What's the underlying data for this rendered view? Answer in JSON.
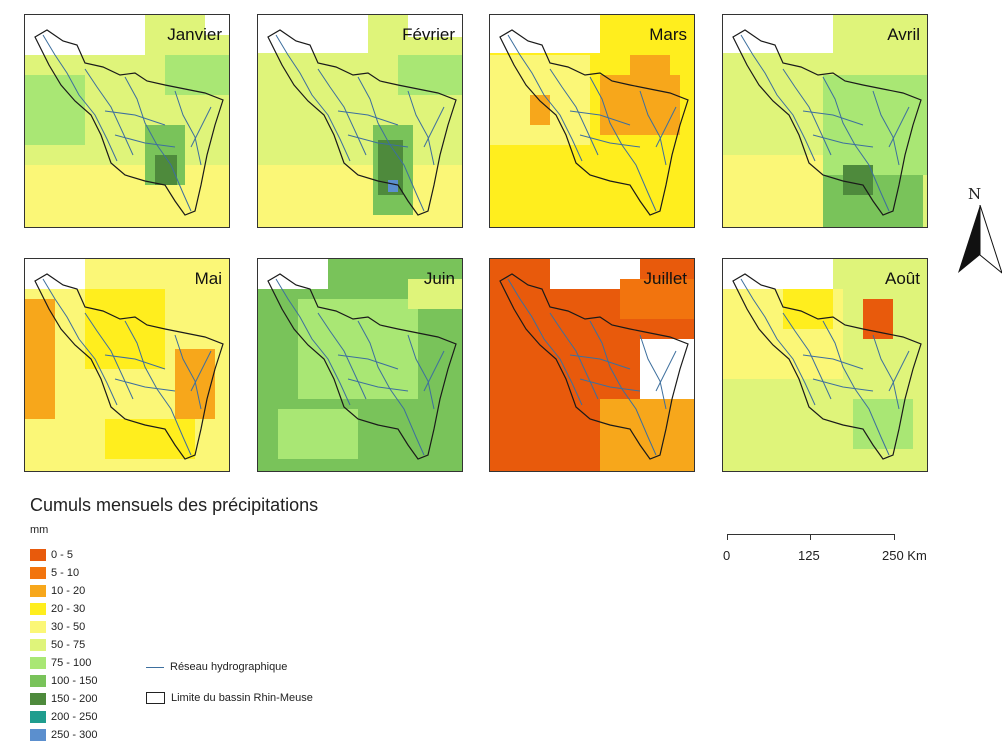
{
  "months": [
    "Janvier",
    "Février",
    "Mars",
    "Avril",
    "Mai",
    "Juin",
    "Juillet",
    "Août"
  ],
  "legend": {
    "title": "Cumuls mensuels des précipitations",
    "unit": "mm",
    "classes": [
      {
        "label": "0 - 5",
        "color": "#e85a0c"
      },
      {
        "label": "5 - 10",
        "color": "#f2740e"
      },
      {
        "label": "10 - 20",
        "color": "#f7a71b"
      },
      {
        "label": "20 - 30",
        "color": "#ffee1e"
      },
      {
        "label": "30 - 50",
        "color": "#fbf777"
      },
      {
        "label": "50 - 75",
        "color": "#dff47a"
      },
      {
        "label": "75 - 100",
        "color": "#a9e774"
      },
      {
        "label": "100 - 150",
        "color": "#79c35a"
      },
      {
        "label": "150 - 200",
        "color": "#4e8a3c"
      },
      {
        "label": "200 - 250",
        "color": "#1f9d8e"
      },
      {
        "label": "250 - 300",
        "color": "#5b8fce"
      }
    ]
  },
  "references": {
    "river": "Réseau hydrographique",
    "basin": "Limite du bassin Rhin-Meuse"
  },
  "scale": {
    "labels": [
      "0",
      "125",
      "250 Km"
    ]
  },
  "north": "N",
  "colors": {
    "river": "#3d6f9e",
    "border": "#1a1a1a"
  }
}
